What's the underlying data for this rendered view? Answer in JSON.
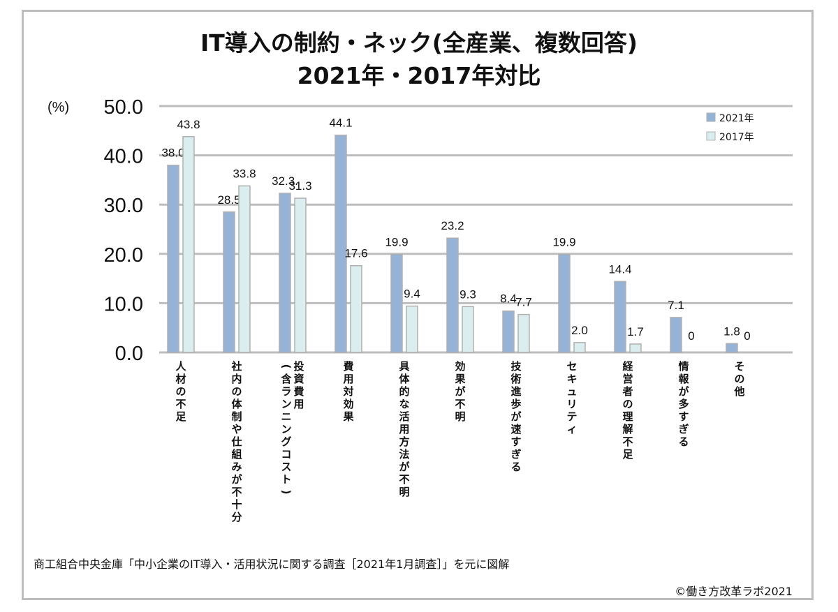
{
  "chart_data": {
    "type": "bar",
    "title": [
      "IT導入の制約・ネック(全産業、複数回答)",
      "2021年・2017年対比"
    ],
    "ylabel": "(%)",
    "ylim": [
      0,
      50
    ],
    "yticks": [
      "0.0",
      "10.0",
      "20.0",
      "30.0",
      "40.0",
      "50.0"
    ],
    "grid": true,
    "legend_position": "top-right",
    "categories": [
      "人材の不足",
      "社内の体制や仕組みが不十分",
      "投資費用\n(含ランニングコスト)",
      "費用対効果",
      "具体的な活用方法が不明",
      "効果が不明",
      "技術進歩が速すぎる",
      "セキュリティ",
      "経営者の理解不足",
      "情報が多すぎる",
      "その他"
    ],
    "series": [
      {
        "name": "2021年",
        "color": "#95b3d7",
        "values": [
          38.0,
          28.5,
          32.3,
          44.1,
          19.9,
          23.2,
          8.4,
          19.9,
          14.4,
          7.1,
          1.8
        ],
        "labels": [
          "38.0",
          "28.5",
          "32.3.",
          "44.1",
          "19.9",
          "23.2",
          "8.4",
          "19.9",
          "14.4",
          "7.1",
          "1.8"
        ]
      },
      {
        "name": "2017年",
        "color": "#daeef0",
        "values": [
          43.8,
          33.8,
          31.3,
          17.6,
          9.4,
          9.3,
          7.7,
          2.0,
          1.7,
          0,
          0
        ],
        "labels": [
          "43.8",
          "33.8",
          "31.3",
          "17.6",
          "9.4",
          "9.3",
          "7.7",
          "2.0",
          "1.7",
          "0",
          "0"
        ]
      }
    ]
  },
  "footer": {
    "source": "商工組合中央金庫「中小企業のIT導入・活用状況に関する調査［2021年1月調査］」を元に図解",
    "copyright": "©働き方改革ラボ2021"
  }
}
